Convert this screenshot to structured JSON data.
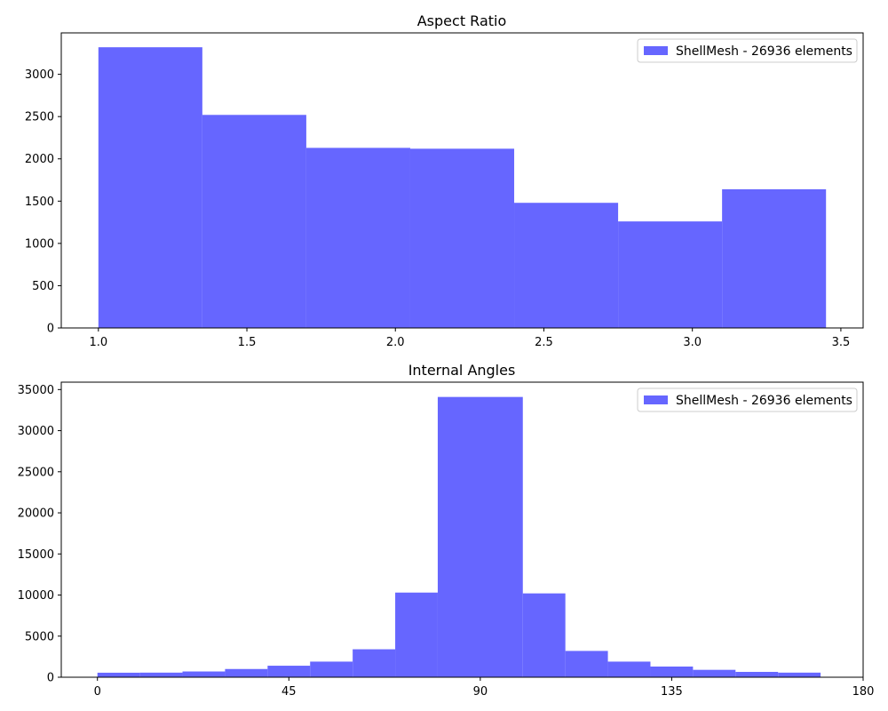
{
  "chart_data": [
    {
      "type": "bar",
      "title": "Aspect Ratio",
      "xlabel": "",
      "ylabel": "",
      "xlim": [
        0.875,
        3.575
      ],
      "ylim": [
        0,
        3490
      ],
      "xticks": [
        1.0,
        1.5,
        2.0,
        2.5,
        3.0,
        3.5
      ],
      "xtick_labels": [
        "1.0",
        "1.5",
        "2.0",
        "2.5",
        "3.0",
        "3.5"
      ],
      "yticks": [
        0,
        500,
        1000,
        1500,
        2000,
        2500,
        3000
      ],
      "ytick_labels": [
        "0",
        "500",
        "1000",
        "1500",
        "2000",
        "2500",
        "3000"
      ],
      "bins": [
        {
          "x0": 1.0,
          "x1": 1.35,
          "count": 3320
        },
        {
          "x0": 1.35,
          "x1": 1.7,
          "count": 2520
        },
        {
          "x0": 1.7,
          "x1": 2.05,
          "count": 2130
        },
        {
          "x0": 2.05,
          "x1": 2.4,
          "count": 2120
        },
        {
          "x0": 2.4,
          "x1": 2.75,
          "count": 1480
        },
        {
          "x0": 2.75,
          "x1": 3.1,
          "count": 1260
        },
        {
          "x0": 3.1,
          "x1": 3.45,
          "count": 1640
        }
      ],
      "bar_color": "#6666ff",
      "grid": false,
      "legend": {
        "label": "ShellMesh - 26936 elements",
        "placement": "top-right"
      }
    },
    {
      "type": "bar",
      "title": "Internal Angles",
      "xlabel": "",
      "ylabel": "",
      "xlim": [
        -8.5,
        180
      ],
      "ylim": [
        0,
        35900
      ],
      "xticks": [
        0,
        45,
        90,
        135,
        180
      ],
      "xtick_labels": [
        "0",
        "45",
        "90",
        "135",
        "180"
      ],
      "yticks": [
        0,
        5000,
        10000,
        15000,
        20000,
        25000,
        30000,
        35000
      ],
      "ytick_labels": [
        "0",
        "5000",
        "10000",
        "15000",
        "20000",
        "25000",
        "30000",
        "35000"
      ],
      "bins": [
        {
          "x0": 0,
          "x1": 10,
          "count": 550
        },
        {
          "x0": 10,
          "x1": 20,
          "count": 560
        },
        {
          "x0": 20,
          "x1": 30,
          "count": 700
        },
        {
          "x0": 30,
          "x1": 40,
          "count": 1000
        },
        {
          "x0": 40,
          "x1": 50,
          "count": 1400
        },
        {
          "x0": 50,
          "x1": 60,
          "count": 1900
        },
        {
          "x0": 60,
          "x1": 70,
          "count": 3400
        },
        {
          "x0": 70,
          "x1": 80,
          "count": 10300
        },
        {
          "x0": 80,
          "x1": 100,
          "count": 34100
        },
        {
          "x0": 100,
          "x1": 110,
          "count": 10200
        },
        {
          "x0": 110,
          "x1": 120,
          "count": 3200
        },
        {
          "x0": 120,
          "x1": 130,
          "count": 1900
        },
        {
          "x0": 130,
          "x1": 140,
          "count": 1300
        },
        {
          "x0": 140,
          "x1": 150,
          "count": 900
        },
        {
          "x0": 150,
          "x1": 160,
          "count": 650
        },
        {
          "x0": 160,
          "x1": 170,
          "count": 560
        }
      ],
      "bar_color": "#6666ff",
      "grid": false,
      "legend": {
        "label": "ShellMesh - 26936 elements",
        "placement": "top-right"
      }
    }
  ]
}
